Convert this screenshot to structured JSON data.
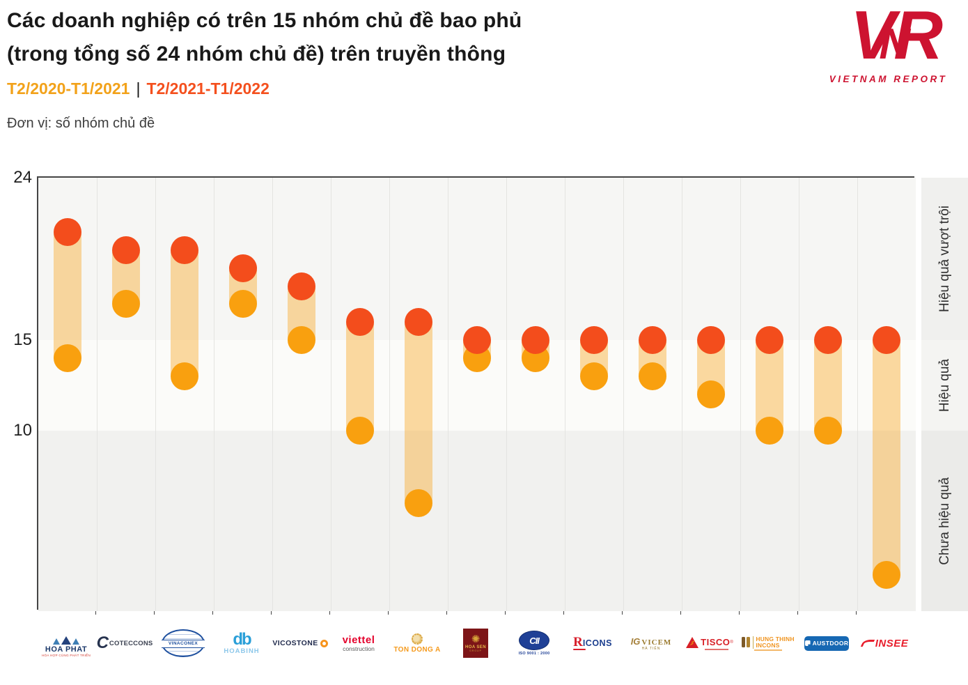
{
  "header": {
    "title_line1": "Các doanh nghiệp có trên 15 nhóm chủ đề bao phủ",
    "title_line2": "(trong tổng số 24 nhóm chủ đề) trên truyền thông",
    "legend": {
      "period1": "T2/2020-T1/2021",
      "separator": "|",
      "period2": "T2/2021-T1/2022",
      "period1_color": "#F2A21A",
      "period2_color": "#F4501E"
    },
    "unit_label": "Đơn vị: số nhóm chủ đề"
  },
  "brand": {
    "letters": [
      "V",
      "N",
      "R"
    ],
    "subtext": "VIETNAM REPORT",
    "color": "#CD1330"
  },
  "chart_data": {
    "type": "dumbbell",
    "title": "Các doanh nghiệp có trên 15 nhóm chủ đề bao phủ (trong tổng số 24 nhóm chủ đề) trên truyền thông",
    "unit": "số nhóm chủ đề",
    "ylim": [
      0,
      24
    ],
    "y_ticks": [
      24,
      15,
      10
    ],
    "grid": "vertical-column-separators",
    "legend_position": "top-left",
    "zones": [
      {
        "label": "Hiệu quả vượt trội",
        "from": 15,
        "to": 24,
        "color": "#f6f6f4",
        "strip_color": "#f0f0ee"
      },
      {
        "label": "Hiệu quả",
        "from": 10,
        "to": 15,
        "color": "#fbfbf9",
        "strip_color": "#f4f4f2"
      },
      {
        "label": "Chưa hiệu quả",
        "from": 0,
        "to": 10,
        "color": "#f1f1ef",
        "strip_color": "#ebebe9"
      }
    ],
    "categories": [
      "Hòa Phát",
      "Coteccons",
      "Vinaconex",
      "Hòa Bình",
      "Vicostone",
      "Viettel Construction",
      "Tôn Đông Á",
      "Hoa Sen",
      "CII",
      "Ricons",
      "Vicem Hà Tiên",
      "Tisco",
      "Hưng Thịnh Incons",
      "Austdoor",
      "INSEE"
    ],
    "series": [
      {
        "name": "T2/2020-T1/2021",
        "color": "#F9A00F",
        "values": [
          14,
          17,
          13,
          17,
          15,
          10,
          6,
          14,
          14,
          13,
          13,
          12,
          10,
          10,
          2
        ]
      },
      {
        "name": "T2/2021-T1/2022",
        "color": "#F34D1C",
        "values": [
          21,
          20,
          20,
          19,
          18,
          16,
          16,
          15,
          15,
          15,
          15,
          15,
          15,
          15,
          15
        ]
      }
    ],
    "connector_color": "rgba(248,166,35,0.42)"
  },
  "logos": [
    {
      "name": "Hòa Phát",
      "text": "HOA PHAT",
      "tagline": "HÒA HỢP CÙNG PHÁT TRIỂN"
    },
    {
      "name": "Coteccons",
      "mark": "C",
      "text": "COTECCONS"
    },
    {
      "name": "Vinaconex",
      "text": "VINACONEX"
    },
    {
      "name": "Hòa Bình",
      "mark": "db",
      "text": "HOABINH"
    },
    {
      "name": "Vicostone",
      "text": "VICOSTONE"
    },
    {
      "name": "Viettel Construction",
      "text": "viettel",
      "sub": "construction"
    },
    {
      "name": "Tôn Đông Á",
      "text": "TON DONG A"
    },
    {
      "name": "Hoa Sen",
      "text": "HOA SEN",
      "sub": "GROUP"
    },
    {
      "name": "CII",
      "text": "CII",
      "sub": "ISO 9001 : 2000"
    },
    {
      "name": "Ricons",
      "mark": "R",
      "text": "ICONS"
    },
    {
      "name": "Vicem Hà Tiên",
      "mark": "IG",
      "text": "VICEM",
      "sub": "HÀ TIÊN"
    },
    {
      "name": "Tisco",
      "text": "TISCO",
      "reg": "®"
    },
    {
      "name": "Hưng Thịnh Incons",
      "text": "HUNG THINH",
      "sub": "INCONS"
    },
    {
      "name": "Austdoor",
      "text": "AUSTDOOR"
    },
    {
      "name": "INSEE",
      "text": "INSEE"
    }
  ]
}
